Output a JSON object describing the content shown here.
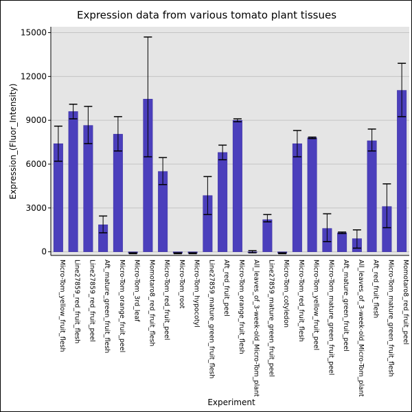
{
  "chart_data": {
    "type": "bar",
    "title": "Expression data from various tomato plant tissues",
    "xlabel": "Experiment",
    "ylabel": "Expression_(Fluor_Intensity)",
    "ylim": [
      -250,
      15400
    ],
    "yticks": [
      0,
      3000,
      6000,
      9000,
      12000,
      15000
    ],
    "grid": true,
    "bar_color": "#4b3fbc",
    "plot_bg": "#e5e5e5",
    "categories": [
      "Micro-Tom_yellow_fruit_flesh",
      "Line27859_red_fruit_flesh",
      "Line27859_red_fruit_peel",
      "Aft_mature_green_fruit_flesh",
      "Micro-Tom_orange_fruit_peel",
      "Micro-Tom_3rd_leaf",
      "Momotaro8_red_fruit_flesh",
      "Micro-Tom_red_fruit_peel",
      "Micro-Tom_root",
      "Micro-Tom_hypocotyl",
      "Line27859_mature_green_fruit_flesh",
      "Aft_red_fruit_peel",
      "Micro-Tom_orange_fruit_flesh",
      "All_leaves_of_3-week-old_Micro-Tom_plant",
      "Line27859_mature_green_fruit_peel",
      "Micro-Tom_cotyledon",
      "Micro-Tom_red_fruit_flesh",
      "Micro-Tom_yellow_fruit_peel",
      "Micro-Tom_mature_green_fruit_peel",
      "Aft_mature_green_fruit_peel",
      "All_leaves_of_3-week-old_Micro-Tom_plant",
      "Aft_red_fruit_flesh",
      "Micro-Tom_mature_green_fruit_flesh",
      "Momotaro8_red_fruit_peel"
    ],
    "values": [
      7400,
      9600,
      8650,
      1850,
      8050,
      -100,
      10450,
      5500,
      -100,
      -100,
      3850,
      6800,
      9000,
      0,
      2200,
      -100,
      7400,
      7800,
      1600,
      1300,
      900,
      7600,
      3100,
      11050
    ],
    "error_low": [
      6200,
      9100,
      7400,
      1300,
      6900,
      -130,
      6500,
      4600,
      -130,
      -130,
      2550,
      6300,
      8900,
      -70,
      2050,
      -130,
      6500,
      7750,
      700,
      1250,
      250,
      6900,
      1650,
      9250
    ],
    "error_high": [
      8600,
      10100,
      9950,
      2450,
      9250,
      -70,
      14700,
      6450,
      -70,
      -70,
      5150,
      7300,
      9100,
      80,
      2550,
      -70,
      8300,
      7850,
      2600,
      1350,
      1500,
      8400,
      4650,
      12900
    ]
  }
}
